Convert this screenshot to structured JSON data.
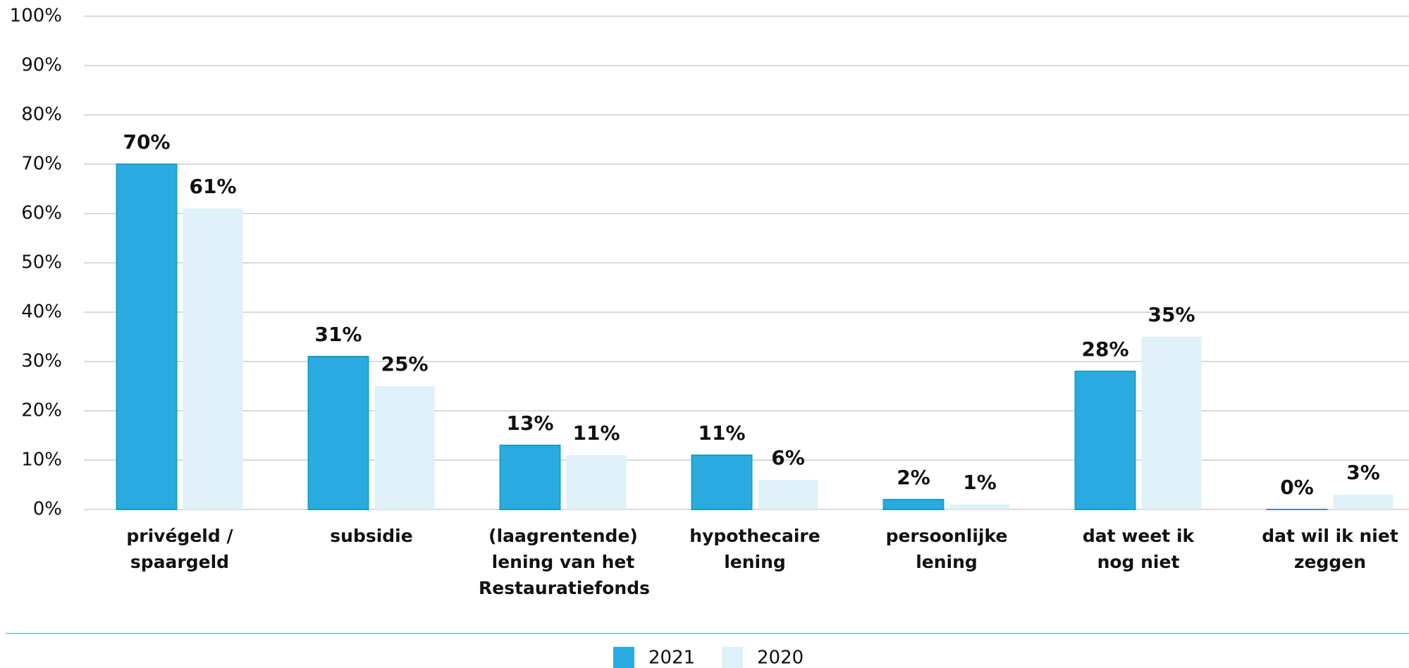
{
  "chart_data": {
    "type": "bar",
    "categories": [
      "privégeld /\nspaargeld",
      "subsidie",
      "(laagrentende)\nlening van het\nRestauratiefonds",
      "hypothecaire\nlening",
      "persoonlijke\nlening",
      "dat weet ik\nnog niet",
      "dat wil ik niet\nzeggen"
    ],
    "series": [
      {
        "name": "2021",
        "color": "#29abe2",
        "values": [
          70,
          31,
          13,
          11,
          2,
          28,
          0
        ],
        "value_labels": [
          "70%",
          "31%",
          "13%",
          "11%",
          "2%",
          "28%",
          "0%"
        ]
      },
      {
        "name": "2020",
        "color": "#dff1f8",
        "values": [
          61,
          25,
          11,
          6,
          1,
          35,
          3
        ],
        "value_labels": [
          "61%",
          "25%",
          "11%",
          "6%",
          "1%",
          "35%",
          "3%"
        ]
      }
    ],
    "ylim": [
      0,
      100
    ],
    "yticks": [
      {
        "value": 0,
        "label": "0%"
      },
      {
        "value": 10,
        "label": "10%"
      },
      {
        "value": 20,
        "label": "20%"
      },
      {
        "value": 30,
        "label": "30%"
      },
      {
        "value": 40,
        "label": "40%"
      },
      {
        "value": 50,
        "label": "50%"
      },
      {
        "value": 60,
        "label": "60%"
      },
      {
        "value": 70,
        "label": "70%"
      },
      {
        "value": 80,
        "label": "80%"
      },
      {
        "value": 90,
        "label": "90%"
      },
      {
        "value": 100,
        "label": "100%"
      }
    ],
    "grid": true,
    "legend": "bottom"
  }
}
